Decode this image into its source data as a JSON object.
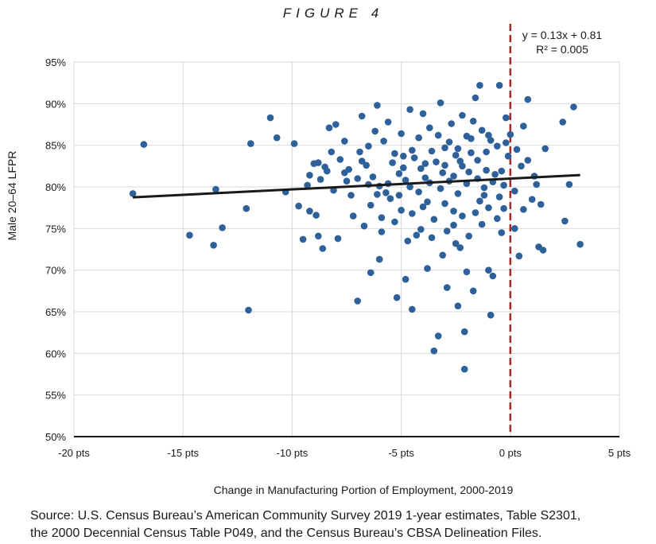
{
  "figure_title": "FIGURE 4",
  "source_lines": [
    "Source: U.S. Census Bureau’s American Community Survey 2019 1-year estimates, Table S2301,",
    "the 2000 Decennial Census Table P049, and the Census Bureau’s CBSA Delineation Files."
  ],
  "colors": {
    "points": "#2e6199",
    "trendline": "#1a1a1a",
    "reference_line": "#a52a2a",
    "grid": "#d9d9d9"
  },
  "chart_data": {
    "type": "scatter",
    "title": "",
    "xlabel": "Change in Manufacturing Portion of Employment, 2000-2019",
    "ylabel": "Male 20–64 LFPR",
    "xlim": [
      -20,
      5
    ],
    "ylim": [
      50,
      95
    ],
    "x_ticks": [
      -20,
      -15,
      -10,
      -5,
      0,
      5
    ],
    "x_tick_labels": [
      "-20 pts",
      "-15 pts",
      "-10 pts",
      "-5 pts",
      "0 pts",
      "5 pts"
    ],
    "y_ticks": [
      50,
      55,
      60,
      65,
      70,
      75,
      80,
      85,
      90,
      95
    ],
    "y_tick_labels": [
      "50%",
      "55%",
      "60%",
      "65%",
      "70%",
      "75%",
      "80%",
      "85%",
      "90%",
      "95%"
    ],
    "grid": "vertical and horizontal",
    "trendline": {
      "equation": "y = 0.13x + 0.81",
      "r_squared": "R² = 0.005",
      "slope_per_pt": 0.13,
      "intercept": 81,
      "x_range": [
        -17.3,
        3.2
      ]
    },
    "reference_line": {
      "x": 0,
      "style": "dashed"
    },
    "points": [
      [
        -17.3,
        79.2
      ],
      [
        -16.8,
        85.1
      ],
      [
        -14.7,
        74.2
      ],
      [
        -13.5,
        79.7
      ],
      [
        -13.2,
        75.1
      ],
      [
        -13.6,
        73.0
      ],
      [
        -12.0,
        65.2
      ],
      [
        -11.9,
        85.2
      ],
      [
        -12.1,
        77.4
      ],
      [
        -11.0,
        88.3
      ],
      [
        -10.7,
        85.9
      ],
      [
        -10.3,
        79.4
      ],
      [
        -9.9,
        85.2
      ],
      [
        -9.7,
        77.7
      ],
      [
        -9.5,
        73.7
      ],
      [
        -9.2,
        77.1
      ],
      [
        -9.0,
        82.8
      ],
      [
        -8.8,
        74.1
      ],
      [
        -8.7,
        80.9
      ],
      [
        -8.5,
        82.4
      ],
      [
        -8.3,
        87.1
      ],
      [
        -8.0,
        87.5
      ],
      [
        -7.6,
        81.7
      ],
      [
        -7.3,
        79.0
      ],
      [
        -7.0,
        66.3
      ],
      [
        -6.8,
        88.5
      ],
      [
        -6.5,
        84.9
      ],
      [
        -6.4,
        69.7
      ],
      [
        -6.1,
        89.8
      ],
      [
        -5.9,
        76.3
      ],
      [
        -5.6,
        87.8
      ],
      [
        -5.2,
        66.7
      ],
      [
        -4.9,
        83.7
      ],
      [
        -4.8,
        68.9
      ],
      [
        -4.6,
        89.3
      ],
      [
        -4.5,
        65.3
      ],
      [
        -4.3,
        74.2
      ],
      [
        -4.0,
        88.8
      ],
      [
        -3.8,
        78.2
      ],
      [
        -3.5,
        60.3
      ],
      [
        -3.3,
        62.1
      ],
      [
        -3.2,
        90.1
      ],
      [
        -3.1,
        71.8
      ],
      [
        -2.9,
        67.9
      ],
      [
        -2.6,
        75.4
      ],
      [
        -2.4,
        65.7
      ],
      [
        -2.3,
        72.7
      ],
      [
        -2.1,
        58.1
      ],
      [
        -2.1,
        62.6
      ],
      [
        -2.0,
        86.1
      ],
      [
        -1.7,
        67.5
      ],
      [
        -1.6,
        90.7
      ],
      [
        -1.4,
        92.2
      ],
      [
        -1.2,
        79.0
      ],
      [
        -1.0,
        86.2
      ],
      [
        -0.9,
        64.6
      ],
      [
        -0.8,
        69.3
      ],
      [
        -0.5,
        92.2
      ],
      [
        -0.4,
        74.5
      ],
      [
        -0.2,
        88.3
      ],
      [
        0.0,
        86.3
      ],
      [
        0.3,
        84.5
      ],
      [
        0.4,
        71.7
      ],
      [
        0.6,
        87.3
      ],
      [
        0.8,
        90.5
      ],
      [
        0.8,
        83.2
      ],
      [
        1.0,
        78.5
      ],
      [
        1.2,
        80.3
      ],
      [
        1.3,
        72.8
      ],
      [
        1.4,
        77.9
      ],
      [
        1.5,
        72.4
      ],
      [
        1.6,
        84.6
      ],
      [
        2.4,
        87.8
      ],
      [
        2.5,
        75.9
      ],
      [
        2.7,
        80.3
      ],
      [
        2.9,
        89.6
      ],
      [
        3.2,
        73.1
      ],
      [
        -1.9,
        81.8
      ],
      [
        -6.9,
        84.2
      ],
      [
        -6.6,
        82.6
      ],
      [
        -6.3,
        81.2
      ],
      [
        -6.0,
        80.1
      ],
      [
        -5.7,
        79.3
      ],
      [
        -5.4,
        82.9
      ],
      [
        -5.1,
        81.6
      ],
      [
        -4.8,
        80.8
      ],
      [
        -4.4,
        83.5
      ],
      [
        -4.1,
        82.2
      ],
      [
        -3.9,
        81.1
      ],
      [
        -3.6,
        84.3
      ],
      [
        -3.4,
        83.0
      ],
      [
        -3.0,
        82.6
      ],
      [
        -2.8,
        85.4
      ],
      [
        -2.5,
        83.8
      ],
      [
        -2.2,
        82.5
      ],
      [
        -1.8,
        84.1
      ],
      [
        -1.5,
        83.2
      ],
      [
        -1.1,
        82.0
      ],
      [
        -0.7,
        81.5
      ],
      [
        -0.3,
        80.2
      ],
      [
        -7.5,
        80.7
      ],
      [
        -7.8,
        83.3
      ],
      [
        -8.1,
        79.6
      ],
      [
        -8.4,
        81.9
      ],
      [
        -6.2,
        86.7
      ],
      [
        -5.8,
        85.5
      ],
      [
        -5.0,
        86.4
      ],
      [
        -4.2,
        85.9
      ],
      [
        -3.7,
        87.1
      ],
      [
        -3.3,
        86.2
      ],
      [
        -2.7,
        87.6
      ],
      [
        -2.2,
        88.6
      ],
      [
        -1.7,
        87.9
      ],
      [
        -1.3,
        86.8
      ],
      [
        -0.9,
        85.6
      ],
      [
        -0.6,
        84.9
      ],
      [
        -0.2,
        85.3
      ],
      [
        -6.4,
        77.8
      ],
      [
        -5.5,
        78.6
      ],
      [
        -5.0,
        77.2
      ],
      [
        -4.5,
        76.8
      ],
      [
        -4.0,
        77.6
      ],
      [
        -3.5,
        76.1
      ],
      [
        -3.0,
        78.0
      ],
      [
        -2.6,
        77.1
      ],
      [
        -2.2,
        76.5
      ],
      [
        -1.6,
        76.9
      ],
      [
        -1.0,
        77.5
      ],
      [
        -0.6,
        76.2
      ],
      [
        -7.2,
        76.5
      ],
      [
        -6.7,
        75.3
      ],
      [
        -5.9,
        74.6
      ],
      [
        -5.3,
        75.8
      ],
      [
        -4.7,
        73.5
      ],
      [
        -4.1,
        74.9
      ],
      [
        -3.6,
        73.9
      ],
      [
        -2.9,
        74.7
      ],
      [
        -2.5,
        73.2
      ],
      [
        -1.9,
        74.1
      ],
      [
        -1.3,
        75.5
      ],
      [
        -0.5,
        78.8
      ],
      [
        -8.9,
        76.6
      ],
      [
        -9.3,
        80.2
      ],
      [
        -8.6,
        72.6
      ],
      [
        -7.9,
        73.8
      ],
      [
        -6.0,
        71.3
      ],
      [
        -3.8,
        70.2
      ],
      [
        -2.0,
        69.8
      ],
      [
        -1.0,
        70.0
      ],
      [
        0.2,
        75.0
      ],
      [
        0.6,
        77.3
      ],
      [
        1.1,
        81.3
      ],
      [
        0.5,
        82.5
      ],
      [
        0.2,
        79.5
      ],
      [
        -0.1,
        83.7
      ],
      [
        -0.4,
        81.9
      ],
      [
        -0.8,
        80.6
      ],
      [
        -1.2,
        79.9
      ],
      [
        -1.5,
        81.0
      ],
      [
        -2.0,
        80.4
      ],
      [
        -2.4,
        79.2
      ],
      [
        -2.8,
        80.7
      ],
      [
        -3.2,
        79.8
      ],
      [
        -3.7,
        80.5
      ],
      [
        -4.2,
        79.4
      ],
      [
        -4.6,
        80.0
      ],
      [
        -5.1,
        79.0
      ],
      [
        -5.6,
        80.4
      ],
      [
        -6.1,
        79.1
      ],
      [
        -6.5,
        80.3
      ],
      [
        -7.0,
        81.0
      ],
      [
        -7.4,
        82.1
      ],
      [
        -8.2,
        84.2
      ],
      [
        -8.8,
        82.9
      ],
      [
        -9.2,
        81.4
      ],
      [
        -3.0,
        84.7
      ],
      [
        -2.4,
        84.6
      ],
      [
        -1.8,
        85.8
      ],
      [
        -1.1,
        84.2
      ],
      [
        -4.5,
        84.4
      ],
      [
        -5.3,
        84.0
      ],
      [
        -6.8,
        83.1
      ],
      [
        -7.6,
        85.5
      ],
      [
        -2.6,
        81.3
      ],
      [
        -3.9,
        82.8
      ],
      [
        -4.9,
        82.3
      ],
      [
        -1.4,
        78.3
      ],
      [
        -0.3,
        77.4
      ],
      [
        -2.3,
        83.1
      ],
      [
        -3.1,
        81.7
      ]
    ]
  }
}
